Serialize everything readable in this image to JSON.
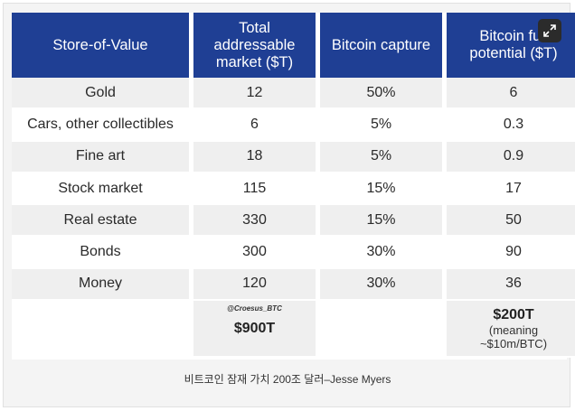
{
  "table": {
    "headers": [
      "Store-of-Value",
      "Total addressable market ($T)",
      "Bitcoin capture",
      "Bitcoin full potential ($T)"
    ],
    "rows": [
      {
        "name": "Gold",
        "tam": "12",
        "capture": "50%",
        "potential": "6"
      },
      {
        "name": "Cars, other collectibles",
        "tam": "6",
        "capture": "5%",
        "potential": "0.3"
      },
      {
        "name": "Fine art",
        "tam": "18",
        "capture": "5%",
        "potential": "0.9"
      },
      {
        "name": "Stock market",
        "tam": "115",
        "capture": "15%",
        "potential": "17"
      },
      {
        "name": "Real estate",
        "tam": "330",
        "capture": "15%",
        "potential": "50"
      },
      {
        "name": "Bonds",
        "tam": "300",
        "capture": "30%",
        "potential": "90"
      },
      {
        "name": "Money",
        "tam": "120",
        "capture": "30%",
        "potential": "36"
      }
    ],
    "totals": {
      "watermark": "@Croesus_BTC",
      "tam": "$900T",
      "potential": "$200T",
      "potential_note": "(meaning ~$10m/BTC)"
    }
  },
  "caption": "비트코인 잠재 가치 200조 달러–Jesse Myers",
  "icons": {
    "expand": "expand-icon"
  },
  "colors": {
    "header_bg": "#1f3f94",
    "row_stripe": "#efefef"
  }
}
